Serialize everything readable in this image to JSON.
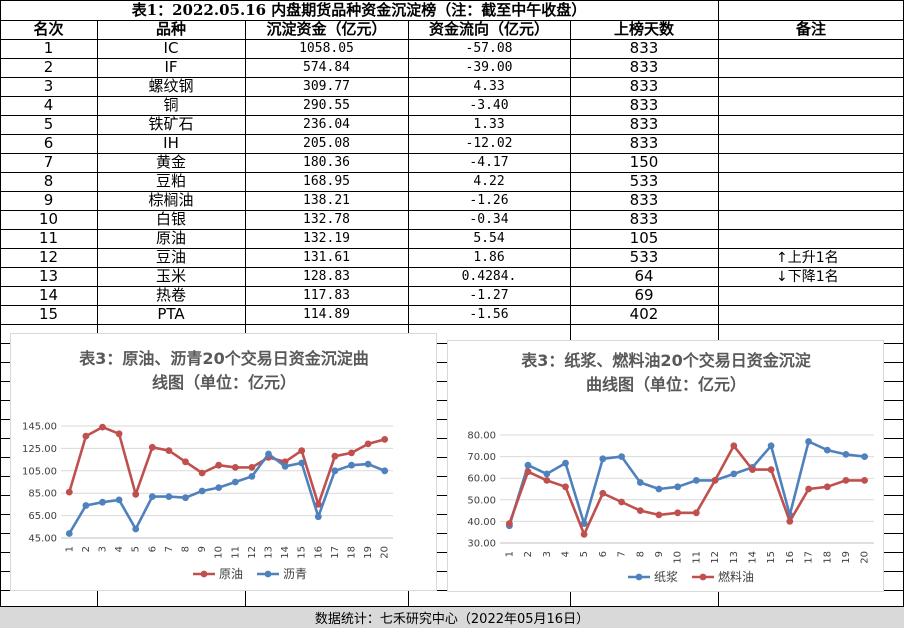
{
  "table": {
    "title": "表1：2022.05.16 内盘期货品种资金沉淀榜（注：截至中午收盘）",
    "headers": [
      "名次",
      "品种",
      "沉淀资金（亿元）",
      "资金流向（亿元）",
      "上榜天数",
      "备注"
    ],
    "rows": [
      {
        "rank": "1",
        "name": "IC",
        "capital": "1058.05",
        "flow": "-57.08",
        "days": "833",
        "note": ""
      },
      {
        "rank": "2",
        "name": "IF",
        "capital": "574.84",
        "flow": "-39.00",
        "days": "833",
        "note": ""
      },
      {
        "rank": "3",
        "name": "螺纹钢",
        "capital": "309.77",
        "flow": "4.33",
        "days": "833",
        "note": ""
      },
      {
        "rank": "4",
        "name": "铜",
        "capital": "290.55",
        "flow": "-3.40",
        "days": "833",
        "note": ""
      },
      {
        "rank": "5",
        "name": "铁矿石",
        "capital": "236.04",
        "flow": "1.33",
        "days": "833",
        "note": ""
      },
      {
        "rank": "6",
        "name": "IH",
        "capital": "205.08",
        "flow": "-12.02",
        "days": "833",
        "note": ""
      },
      {
        "rank": "7",
        "name": "黄金",
        "capital": "180.36",
        "flow": "-4.17",
        "days": "150",
        "note": ""
      },
      {
        "rank": "8",
        "name": "豆粕",
        "capital": "168.95",
        "flow": "4.22",
        "days": "533",
        "note": ""
      },
      {
        "rank": "9",
        "name": "棕榈油",
        "capital": "138.21",
        "flow": "-1.26",
        "days": "833",
        "note": ""
      },
      {
        "rank": "10",
        "name": "白银",
        "capital": "132.78",
        "flow": "-0.34",
        "days": "833",
        "note": ""
      },
      {
        "rank": "11",
        "name": "原油",
        "capital": "132.19",
        "flow": "5.54",
        "days": "105",
        "note": ""
      },
      {
        "rank": "12",
        "name": "豆油",
        "capital": "131.61",
        "flow": "1.86",
        "days": "533",
        "note": "↑上升1名"
      },
      {
        "rank": "13",
        "name": "玉米",
        "capital": "128.83",
        "flow": "0.4284.",
        "days": "64",
        "note": "↓下降1名"
      },
      {
        "rank": "14",
        "name": "热卷",
        "capital": "117.83",
        "flow": "-1.27",
        "days": "69",
        "note": ""
      },
      {
        "rank": "15",
        "name": "PTA",
        "capital": "114.89",
        "flow": "-1.56",
        "days": "402",
        "note": ""
      }
    ]
  },
  "footer": "数据统计：七禾研究中心（2022年05月16日）",
  "chart_data": [
    {
      "type": "line",
      "title": "表3：原油、沥青20个交易日资金沉淀曲线图（单位：亿元）",
      "title_lines": [
        "表3：原油、沥青20个交易日资金沉淀曲",
        "线图（单位：亿元）"
      ],
      "x": [
        1,
        2,
        3,
        4,
        5,
        6,
        7,
        8,
        9,
        10,
        11,
        12,
        13,
        14,
        15,
        16,
        17,
        18,
        19,
        20
      ],
      "ylim": [
        45,
        145
      ],
      "yticks": [
        "45.00",
        "65.00",
        "85.00",
        "105.00",
        "125.00",
        "145.00"
      ],
      "ytick_values": [
        45,
        65,
        85,
        105,
        125,
        145
      ],
      "legend_position": "bottom",
      "series": [
        {
          "name": "原油",
          "color": "#c0504d",
          "values": [
            86,
            136,
            144,
            138,
            84,
            126,
            123,
            113,
            103,
            110,
            108,
            108,
            117,
            113,
            123,
            75,
            118,
            121,
            129,
            133
          ]
        },
        {
          "name": "沥青",
          "color": "#4f81bd",
          "values": [
            49,
            74,
            77,
            79,
            53,
            82,
            82,
            81,
            87,
            90,
            95,
            100,
            120,
            109,
            112,
            64,
            105,
            110,
            111,
            105
          ]
        }
      ]
    },
    {
      "type": "line",
      "title": "表3：纸浆、燃料油20个交易日资金沉淀曲线图（单位：亿元）",
      "title_lines": [
        "表3：纸浆、燃料油20个交易日资金沉淀",
        "曲线图（单位：亿元）"
      ],
      "x": [
        1,
        2,
        3,
        4,
        5,
        6,
        7,
        8,
        9,
        10,
        11,
        12,
        13,
        14,
        15,
        16,
        17,
        18,
        19,
        20
      ],
      "ylim": [
        30,
        80
      ],
      "yticks": [
        "30.00",
        "40.00",
        "50.00",
        "60.00",
        "70.00",
        "80.00"
      ],
      "ytick_values": [
        30,
        40,
        50,
        60,
        70,
        80
      ],
      "legend_position": "bottom",
      "series": [
        {
          "name": "纸浆",
          "color": "#4f81bd",
          "values": [
            38,
            66,
            62,
            67,
            39,
            69,
            70,
            58,
            55,
            56,
            59,
            59,
            62,
            65,
            75,
            43,
            77,
            73,
            71,
            70
          ]
        },
        {
          "name": "燃料油",
          "color": "#c0504d",
          "values": [
            39,
            63,
            59,
            56,
            34,
            53,
            49,
            45,
            43,
            44,
            44,
            59,
            75,
            64,
            64,
            40,
            55,
            56,
            59,
            59
          ]
        }
      ]
    }
  ]
}
